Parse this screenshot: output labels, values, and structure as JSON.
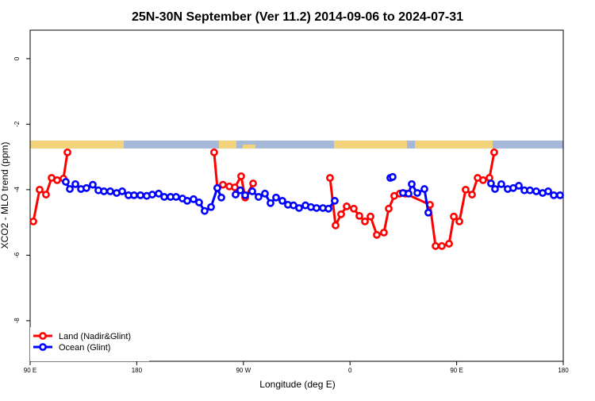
{
  "chart_data": {
    "type": "line",
    "title": "25N-30N September (Ver 11.2)   2014-09-06 to 2024-07-31",
    "x_label": "Longitude (deg E)",
    "y_label": "XCO2 - MLO trend (ppm)",
    "xlim": [
      90,
      540
    ],
    "ylim": [
      -9.24,
      0.87
    ],
    "xticks": [
      {
        "value": 90,
        "label": "90 E"
      },
      180,
      {
        "value": 270,
        "label": "90 W"
      },
      {
        "value": 360,
        "label": "0"
      },
      {
        "value": 450,
        "label": "90 E"
      },
      {
        "value": 540,
        "label": "180"
      }
    ],
    "yticks": [
      0,
      -2,
      -4,
      -6,
      -8
    ],
    "legend": "bottom-left",
    "series": [
      {
        "name": "Land (Nadir&Glint)",
        "color": "#ff0000",
        "x": [
          92.7,
          98.0,
          103.4,
          108.1,
          112.8,
          118.1,
          121.5,
          160,
          245.3,
          248.0,
          252.7,
          258.1,
          262.8,
          268.1,
          271.5,
          278.2,
          340,
          343.1,
          347.8,
          352.5,
          357.2,
          363.2,
          367.9,
          372.6,
          377.3,
          382.6,
          388.6,
          392.7,
          397.3,
          402.0,
          406.7,
          427.5,
          432.2,
          437.5,
          443.6,
          447.6,
          452.3,
          457.6,
          463.0,
          467.7,
          472.3,
          477.7,
          481.7
        ],
        "values": [
          -4.97,
          -4.0,
          -4.15,
          -3.64,
          -3.71,
          -3.66,
          -2.86,
          null,
          -2.86,
          -3.95,
          -3.85,
          -3.9,
          -3.93,
          -3.59,
          -4.24,
          -3.81,
          null,
          -3.64,
          -5.09,
          -4.75,
          -4.51,
          -4.58,
          -4.8,
          -4.97,
          -4.82,
          -5.38,
          -5.31,
          -4.58,
          -4.19,
          -4.12,
          -4.12,
          -4.46,
          -5.72,
          -5.72,
          -5.65,
          -4.82,
          -4.97,
          -4.0,
          -4.15,
          -3.64,
          -3.71,
          -3.64,
          -2.86
        ]
      },
      {
        "name": "Ocean (Glint)",
        "color": "#0000ff",
        "x": [
          120.1,
          123.5,
          128.2,
          132.9,
          137.5,
          142.9,
          147.6,
          152.3,
          157.6,
          163.0,
          167.7,
          173.0,
          177.7,
          183.1,
          188.4,
          193.1,
          198.5,
          203.2,
          208.5,
          213.2,
          218.6,
          222.6,
          227.9,
          232.6,
          237.3,
          242.7,
          248.0,
          251.4,
          255,
          263.4,
          267.4,
          271.5,
          277.5,
          282.8,
          288.2,
          292.9,
          297.6,
          302.9,
          307.6,
          312.3,
          317.0,
          322.4,
          327.0,
          331.7,
          337.1,
          341.8,
          347.1,
          370,
          394.0,
          396.0,
          400,
          404.7,
          409.4,
          412.1,
          416.8,
          422.8,
          426.1,
          450,
          479.0,
          482.4,
          487.7,
          493.1,
          497.8,
          502.5,
          507.2,
          511.9,
          517.2,
          522.6,
          527.3,
          532.0,
          537.3
        ],
        "values": [
          -3.76,
          -3.98,
          -3.83,
          -3.98,
          -3.95,
          -3.85,
          -4.02,
          -4.05,
          -4.05,
          -4.1,
          -4.05,
          -4.17,
          -4.17,
          -4.17,
          -4.19,
          -4.15,
          -4.12,
          -4.22,
          -4.22,
          -4.22,
          -4.27,
          -4.34,
          -4.29,
          -4.39,
          -4.65,
          -4.53,
          -3.95,
          -4.24,
          null,
          -4.15,
          -4.02,
          -4.17,
          -4.05,
          -4.22,
          -4.12,
          -4.41,
          -4.24,
          -4.34,
          -4.46,
          -4.48,
          -4.56,
          -4.48,
          -4.53,
          -4.56,
          -4.56,
          -4.58,
          -4.34,
          null,
          -3.64,
          -3.61,
          null,
          -4.1,
          -4.12,
          -3.83,
          -4.1,
          -3.98,
          -4.7,
          null,
          -3.81,
          -3.98,
          -3.83,
          -3.98,
          -3.95,
          -3.88,
          -4.02,
          -4.02,
          -4.05,
          -4.1,
          -4.05,
          -4.17,
          -4.17
        ]
      }
    ]
  }
}
